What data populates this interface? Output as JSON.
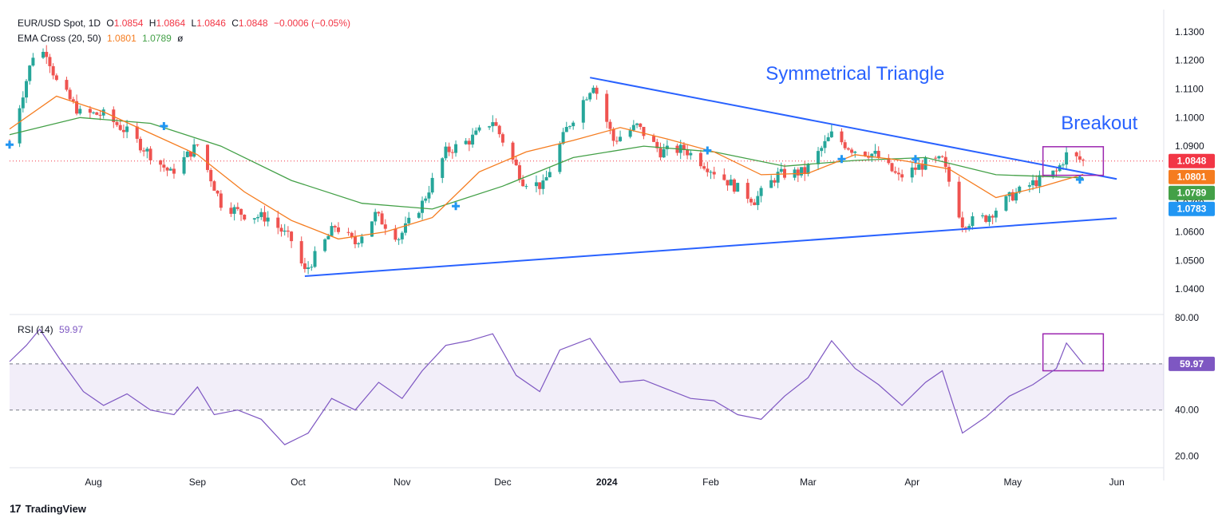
{
  "header": {
    "symbol": "EUR/USD Spot, 1D",
    "o_label": "O",
    "o": "1.0854",
    "h_label": "H",
    "h": "1.0864",
    "l_label": "L",
    "l": "1.0846",
    "c_label": "C",
    "c": "1.0848",
    "change": "−0.0006 (−0.05%)",
    "ema_label": "EMA Cross (20, 50)",
    "ema20": "1.0801",
    "ema50": "1.0789",
    "ema_extra": "ø",
    "rsi_label": "RSI (14)",
    "rsi_value": "59.97"
  },
  "annotations": {
    "triangle": "Symmetrical Triangle",
    "breakout": "Breakout"
  },
  "footer": {
    "brand": "TradingView",
    "logo": "17"
  },
  "colors": {
    "up": "#26a69a",
    "down": "#ef5350",
    "ema20": "#f57c1f",
    "ema50": "#43a047",
    "trend": "#2962ff",
    "rsi": "#7e57c2",
    "box": "#9c27b0",
    "tag_price": "#f23645",
    "tag_ema20": "#f57c1f",
    "tag_ema50": "#43a047",
    "tag_blue": "#2196f3"
  },
  "chart_data": [
    {
      "type": "candlestick",
      "title": "EUR/USD Spot, 1D",
      "ylim": [
        1.035,
        1.135
      ],
      "y_ticks": [
        "1.1300",
        "1.1200",
        "1.1100",
        "1.1000",
        "1.0900",
        "1.0800",
        "1.0700",
        "1.0600",
        "1.0500",
        "1.0400"
      ],
      "x_ticks": [
        "Aug",
        "Sep",
        "Oct",
        "Nov",
        "Dec",
        "2024",
        "Feb",
        "Mar",
        "Apr",
        "May",
        "Jun"
      ],
      "x_range": [
        "2023-07-07",
        "2024-06-15"
      ],
      "price_path": [
        [
          "2023-07-07",
          1.091
        ],
        [
          "2023-07-14",
          1.122
        ],
        [
          "2023-07-18",
          1.123
        ],
        [
          "2023-07-21",
          1.1125
        ],
        [
          "2023-07-28",
          1.1015
        ],
        [
          "2023-08-04",
          1.101
        ],
        [
          "2023-08-11",
          1.095
        ],
        [
          "2023-08-18",
          1.087
        ],
        [
          "2023-08-24",
          1.0805
        ],
        [
          "2023-09-01",
          1.0905
        ],
        [
          "2023-09-08",
          1.07
        ],
        [
          "2023-09-15",
          1.066
        ],
        [
          "2023-09-22",
          1.065
        ],
        [
          "2023-09-29",
          1.057
        ],
        [
          "2023-10-03",
          1.046
        ],
        [
          "2023-10-12",
          1.062
        ],
        [
          "2023-10-18",
          1.056
        ],
        [
          "2023-10-24",
          1.066
        ],
        [
          "2023-10-31",
          1.058
        ],
        [
          "2023-11-07",
          1.07
        ],
        [
          "2023-11-14",
          1.088
        ],
        [
          "2023-11-21",
          1.092
        ],
        [
          "2023-11-28",
          1.099
        ],
        [
          "2023-12-07",
          1.078
        ],
        [
          "2023-12-13",
          1.076
        ],
        [
          "2023-12-20",
          1.096
        ],
        [
          "2023-12-28",
          1.112
        ],
        [
          "2024-01-03",
          1.092
        ],
        [
          "2024-01-10",
          1.097
        ],
        [
          "2024-01-17",
          1.088
        ],
        [
          "2024-01-24",
          1.089
        ],
        [
          "2024-02-01",
          1.082
        ],
        [
          "2024-02-08",
          1.076
        ],
        [
          "2024-02-14",
          1.071
        ],
        [
          "2024-02-21",
          1.08
        ],
        [
          "2024-02-29",
          1.081
        ],
        [
          "2024-03-08",
          1.094
        ],
        [
          "2024-03-14",
          1.089
        ],
        [
          "2024-03-21",
          1.087
        ],
        [
          "2024-03-28",
          1.079
        ],
        [
          "2024-04-05",
          1.084
        ],
        [
          "2024-04-10",
          1.085
        ],
        [
          "2024-04-16",
          1.063
        ],
        [
          "2024-04-23",
          1.065
        ],
        [
          "2024-04-30",
          1.072
        ],
        [
          "2024-05-07",
          1.077
        ],
        [
          "2024-05-14",
          1.081
        ],
        [
          "2024-05-17",
          1.087
        ],
        [
          "2024-05-22",
          1.0848
        ]
      ],
      "ema20_path": [
        [
          "2023-07-07",
          1.096
        ],
        [
          "2023-07-21",
          1.1075
        ],
        [
          "2023-08-04",
          1.102
        ],
        [
          "2023-08-18",
          1.0945
        ],
        [
          "2023-09-01",
          1.087
        ],
        [
          "2023-09-15",
          1.074
        ],
        [
          "2023-09-29",
          1.064
        ],
        [
          "2023-10-13",
          1.0575
        ],
        [
          "2023-10-27",
          1.06
        ],
        [
          "2023-11-10",
          1.065
        ],
        [
          "2023-11-24",
          1.081
        ],
        [
          "2023-12-08",
          1.088
        ],
        [
          "2023-12-22",
          1.092
        ],
        [
          "2024-01-05",
          1.0965
        ],
        [
          "2024-01-19",
          1.0925
        ],
        [
          "2024-02-02",
          1.088
        ],
        [
          "2024-02-16",
          1.08
        ],
        [
          "2024-03-01",
          1.0805
        ],
        [
          "2024-03-15",
          1.087
        ],
        [
          "2024-03-29",
          1.085
        ],
        [
          "2024-04-12",
          1.082
        ],
        [
          "2024-04-26",
          1.072
        ],
        [
          "2024-05-10",
          1.076
        ],
        [
          "2024-05-22",
          1.0801
        ]
      ],
      "ema50_path": [
        [
          "2023-07-07",
          1.094
        ],
        [
          "2023-07-28",
          1.1
        ],
        [
          "2023-08-18",
          1.098
        ],
        [
          "2023-09-08",
          1.09
        ],
        [
          "2023-09-29",
          1.078
        ],
        [
          "2023-10-20",
          1.07
        ],
        [
          "2023-11-10",
          1.068
        ],
        [
          "2023-12-01",
          1.076
        ],
        [
          "2023-12-22",
          1.086
        ],
        [
          "2024-01-12",
          1.09
        ],
        [
          "2024-02-02",
          1.088
        ],
        [
          "2024-02-23",
          1.083
        ],
        [
          "2024-03-15",
          1.085
        ],
        [
          "2024-04-05",
          1.086
        ],
        [
          "2024-04-26",
          1.08
        ],
        [
          "2024-05-22",
          1.0789
        ]
      ],
      "ema_cross_markers": [
        [
          "2023-07-07",
          1.0905
        ],
        [
          "2023-08-22",
          1.097
        ],
        [
          "2023-11-17",
          1.069
        ],
        [
          "2024-01-31",
          1.0885
        ],
        [
          "2024-03-11",
          1.0855
        ],
        [
          "2024-04-02",
          1.0855
        ],
        [
          "2024-05-21",
          1.0783
        ]
      ],
      "trendlines": [
        {
          "from": [
            "2023-12-27",
            1.114
          ],
          "to": [
            "2024-06-01",
            1.0785
          ]
        },
        {
          "from": [
            "2023-10-03",
            1.0445
          ],
          "to": [
            "2024-06-01",
            1.0648
          ]
        }
      ],
      "price_line": 1.0848,
      "price_tags": [
        {
          "value": 1.0848,
          "label": "1.0848"
        },
        {
          "value": 1.0801,
          "label": "1.0801"
        },
        {
          "value": 1.0789,
          "label": "1.0789"
        },
        {
          "value": 1.0783,
          "label": "1.0783"
        }
      ]
    },
    {
      "type": "line",
      "name": "RSI (14)",
      "ylim": [
        15,
        80
      ],
      "y_ticks": [
        "80.00",
        "40.00",
        "20.00"
      ],
      "levels": [
        60,
        40
      ],
      "value_tag": "59.97",
      "points": [
        [
          "2023-07-07",
          61
        ],
        [
          "2023-07-12",
          68
        ],
        [
          "2023-07-16",
          75
        ],
        [
          "2023-07-22",
          62
        ],
        [
          "2023-07-29",
          48
        ],
        [
          "2023-08-04",
          42
        ],
        [
          "2023-08-11",
          47
        ],
        [
          "2023-08-18",
          40
        ],
        [
          "2023-08-25",
          38
        ],
        [
          "2023-09-01",
          50
        ],
        [
          "2023-09-06",
          38
        ],
        [
          "2023-09-13",
          40
        ],
        [
          "2023-09-20",
          36
        ],
        [
          "2023-09-27",
          25
        ],
        [
          "2023-10-04",
          30
        ],
        [
          "2023-10-11",
          45
        ],
        [
          "2023-10-18",
          40
        ],
        [
          "2023-10-25",
          52
        ],
        [
          "2023-11-01",
          45
        ],
        [
          "2023-11-07",
          57
        ],
        [
          "2023-11-14",
          68
        ],
        [
          "2023-11-21",
          70
        ],
        [
          "2023-11-28",
          73
        ],
        [
          "2023-12-05",
          55
        ],
        [
          "2023-12-12",
          48
        ],
        [
          "2023-12-18",
          66
        ],
        [
          "2023-12-27",
          71
        ],
        [
          "2024-01-05",
          52
        ],
        [
          "2024-01-12",
          53
        ],
        [
          "2024-01-19",
          49
        ],
        [
          "2024-01-26",
          45
        ],
        [
          "2024-02-02",
          44
        ],
        [
          "2024-02-09",
          38
        ],
        [
          "2024-02-16",
          36
        ],
        [
          "2024-02-23",
          46
        ],
        [
          "2024-03-01",
          54
        ],
        [
          "2024-03-08",
          70
        ],
        [
          "2024-03-15",
          58
        ],
        [
          "2024-03-22",
          51
        ],
        [
          "2024-03-29",
          42
        ],
        [
          "2024-04-05",
          52
        ],
        [
          "2024-04-10",
          57
        ],
        [
          "2024-04-16",
          30
        ],
        [
          "2024-04-23",
          37
        ],
        [
          "2024-04-30",
          46
        ],
        [
          "2024-05-07",
          51
        ],
        [
          "2024-05-14",
          58
        ],
        [
          "2024-05-17",
          69
        ],
        [
          "2024-05-22",
          59.97
        ]
      ]
    }
  ]
}
